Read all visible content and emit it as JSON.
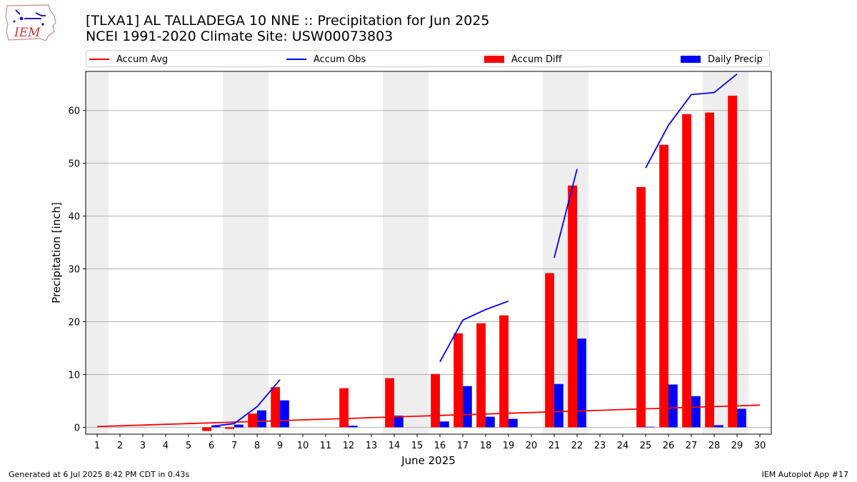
{
  "header": {
    "title_line1": "[TLXA1] AL TALLADEGA 10 NNE :: Precipitation for Jun 2025",
    "title_line2": "NCEI 1991-2020 Climate Site: USW00073803",
    "logo_text": "IEM"
  },
  "footer": {
    "left": "Generated at 6 Jul 2025 8:42 PM CDT in 0.43s",
    "right": "IEM Autoplot App #17"
  },
  "colors": {
    "accum_avg": "#ff0000",
    "accum_obs": "#0000ff",
    "accum_diff": "#ff0000",
    "daily_precip": "#0000ff",
    "weekend_shade": "#eeeeee",
    "grid": "#b0b0b0"
  },
  "chart_data": {
    "type": "bar",
    "title": "[TLXA1] AL TALLADEGA 10 NNE :: Precipitation for Jun 2025",
    "subtitle": "NCEI 1991-2020 Climate Site: USW00073803",
    "xlabel": "June 2025",
    "ylabel": "Precipitation [inch]",
    "ylim": [
      -1.3,
      67.4
    ],
    "xlim": [
      0.5,
      30.5
    ],
    "yticks": [
      0,
      10,
      20,
      30,
      40,
      50,
      60
    ],
    "x": [
      1,
      2,
      3,
      4,
      5,
      6,
      7,
      8,
      9,
      10,
      11,
      12,
      13,
      14,
      15,
      16,
      17,
      18,
      19,
      20,
      21,
      22,
      23,
      24,
      25,
      26,
      27,
      28,
      29,
      30
    ],
    "grid": "y",
    "legend_position": "top",
    "weekend_days": [
      1,
      7,
      8,
      14,
      15,
      21,
      22,
      28,
      29
    ],
    "legend": [
      "Accum Avg",
      "Accum Obs",
      "Accum Diff",
      "Daily Precip"
    ],
    "series": [
      {
        "name": "Accum Avg",
        "kind": "line",
        "values": [
          0.14,
          0.28,
          0.42,
          0.56,
          0.7,
          0.84,
          0.98,
          1.12,
          1.26,
          1.4,
          1.54,
          1.68,
          1.82,
          1.96,
          2.1,
          2.24,
          2.38,
          2.52,
          2.66,
          2.8,
          2.94,
          3.08,
          3.22,
          3.36,
          3.5,
          3.64,
          3.78,
          3.92,
          4.06,
          4.2
        ]
      },
      {
        "name": "Accum Obs",
        "kind": "line",
        "values": [
          null,
          null,
          null,
          null,
          null,
          0.2,
          0.7,
          3.9,
          9.0,
          null,
          null,
          null,
          null,
          null,
          null,
          12.4,
          20.3,
          22.3,
          23.9,
          null,
          32.1,
          48.9,
          null,
          null,
          49.1,
          57.2,
          63.0,
          63.4,
          66.9,
          null
        ]
      },
      {
        "name": "Accum Diff",
        "kind": "bar",
        "values": [
          null,
          null,
          null,
          null,
          null,
          -0.7,
          -0.3,
          2.6,
          7.6,
          null,
          null,
          7.4,
          null,
          9.3,
          null,
          10.1,
          17.8,
          19.7,
          21.2,
          null,
          29.2,
          45.8,
          null,
          null,
          45.5,
          53.5,
          59.3,
          59.6,
          62.8,
          null
        ]
      },
      {
        "name": "Daily Precip",
        "kind": "bar",
        "values": [
          null,
          null,
          null,
          null,
          null,
          0.2,
          0.5,
          3.2,
          5.1,
          null,
          null,
          0.3,
          null,
          2.2,
          null,
          1.1,
          7.8,
          2.0,
          1.6,
          null,
          8.2,
          16.8,
          null,
          null,
          0.1,
          8.1,
          5.9,
          0.4,
          3.5,
          null
        ]
      }
    ]
  }
}
